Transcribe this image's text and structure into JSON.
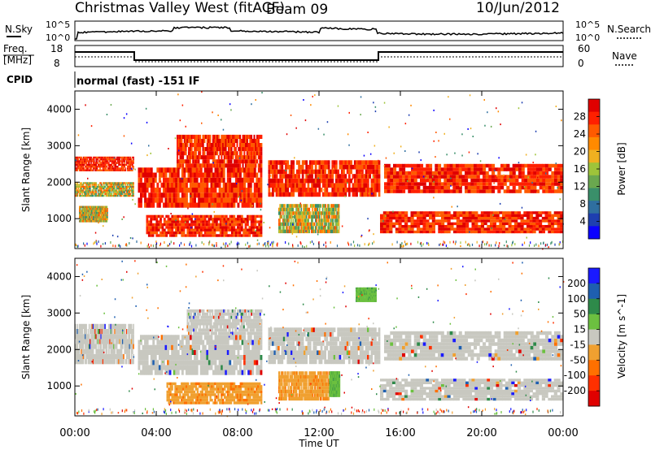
{
  "header": {
    "station": "Christmas Valley West (fitACF)",
    "beam": "Beam 09",
    "date": "10/Jun/2012"
  },
  "panels": {
    "nsky_label": "N.Sky",
    "nsky_ticks": [
      "10^5",
      "10^0"
    ],
    "nsearch_label": "N.Search",
    "nsearch_ticks": [
      "10^5",
      "10^0"
    ],
    "freq_label": "Freq.",
    "freq_unit": "[MHz]",
    "freq_ticks": [
      "18",
      "8"
    ],
    "nave_label": "Nave",
    "nave_ticks": [
      "60",
      "0"
    ],
    "cpid_label": "CPID",
    "cpid_text": "normal (fast) -151 IF"
  },
  "colors": {
    "power": [
      "#0b00ff",
      "#1e3fb0",
      "#2f6fa0",
      "#3a8f6a",
      "#6aa84f",
      "#9ec43a",
      "#f0b020",
      "#ff8a00",
      "#ff5a00",
      "#ff2000",
      "#e00000"
    ],
    "velocity": [
      "#1a1aff",
      "#1e5fb0",
      "#2e8a4a",
      "#6cc040",
      "#c8c8c0",
      "#f0a030",
      "#ff7000",
      "#ff3000",
      "#e00000"
    ]
  },
  "chart_data": [
    {
      "type": "heatmap",
      "name": "power",
      "ylabel": "Slant Range [km]",
      "xlabel": "Time UT",
      "xticks": [
        "00:00",
        "04:00",
        "08:00",
        "12:00",
        "16:00",
        "20:00",
        "00:00"
      ],
      "yticks": [
        "1000",
        "2000",
        "3000",
        "4000"
      ],
      "ylim": [
        180,
        4500
      ],
      "colorbar_label": "Power [dB]",
      "colorbar_ticks": [
        "4",
        "8",
        "12",
        "16",
        "20",
        "24",
        "28"
      ],
      "bands": [
        {
          "t0": 0.0,
          "t1": 2.9,
          "r0": 2300,
          "r1": 2700,
          "v": "high"
        },
        {
          "t0": 0.0,
          "t1": 2.9,
          "r0": 1600,
          "r1": 2000,
          "v": "mid"
        },
        {
          "t0": 0.2,
          "t1": 1.6,
          "r0": 900,
          "r1": 1350,
          "v": "mid"
        },
        {
          "t0": 3.1,
          "t1": 9.2,
          "r0": 1300,
          "r1": 2400,
          "v": "high"
        },
        {
          "t0": 5.0,
          "t1": 9.2,
          "r0": 2400,
          "r1": 3300,
          "v": "high"
        },
        {
          "t0": 3.5,
          "t1": 9.2,
          "r0": 500,
          "r1": 1100,
          "v": "high"
        },
        {
          "t0": 10.0,
          "t1": 13.0,
          "r0": 600,
          "r1": 1400,
          "v": "mid"
        },
        {
          "t0": 9.5,
          "t1": 15.0,
          "r0": 1600,
          "r1": 2600,
          "v": "high"
        },
        {
          "t0": 15.2,
          "t1": 24.0,
          "r0": 1700,
          "r1": 2500,
          "v": "high"
        },
        {
          "t0": 15.0,
          "t1": 24.0,
          "r0": 600,
          "r1": 1200,
          "v": "high"
        }
      ]
    },
    {
      "type": "heatmap",
      "name": "velocity",
      "ylabel": "Slant Range [km]",
      "xlabel": "Time UT",
      "xticks": [
        "00:00",
        "04:00",
        "08:00",
        "12:00",
        "16:00",
        "20:00",
        "00:00"
      ],
      "yticks": [
        "1000",
        "2000",
        "3000",
        "4000"
      ],
      "ylim": [
        180,
        4500
      ],
      "colorbar_label": "Velocity [m s^-1]",
      "colorbar_ticks": [
        "200",
        "100",
        "50",
        "15",
        "-15",
        "-50",
        "-100",
        "-200"
      ],
      "bands": [
        {
          "t0": 0.0,
          "t1": 2.9,
          "r0": 1600,
          "r1": 2700,
          "v": "grey"
        },
        {
          "t0": 3.1,
          "t1": 9.2,
          "r0": 1300,
          "r1": 2400,
          "v": "grey"
        },
        {
          "t0": 5.5,
          "t1": 9.2,
          "r0": 2400,
          "r1": 3100,
          "v": "grey"
        },
        {
          "t0": 4.5,
          "t1": 9.2,
          "r0": 500,
          "r1": 1100,
          "v": "orange"
        },
        {
          "t0": 10.0,
          "t1": 12.5,
          "r0": 600,
          "r1": 1400,
          "v": "orange"
        },
        {
          "t0": 12.5,
          "t1": 13.0,
          "r0": 700,
          "r1": 1400,
          "v": "green"
        },
        {
          "t0": 9.5,
          "t1": 15.0,
          "r0": 1600,
          "r1": 2600,
          "v": "grey"
        },
        {
          "t0": 13.8,
          "t1": 14.8,
          "r0": 3300,
          "r1": 3700,
          "v": "green"
        },
        {
          "t0": 15.2,
          "t1": 24.0,
          "r0": 1700,
          "r1": 2500,
          "v": "grey"
        },
        {
          "t0": 15.0,
          "t1": 24.0,
          "r0": 600,
          "r1": 1200,
          "v": "grey"
        }
      ]
    }
  ]
}
